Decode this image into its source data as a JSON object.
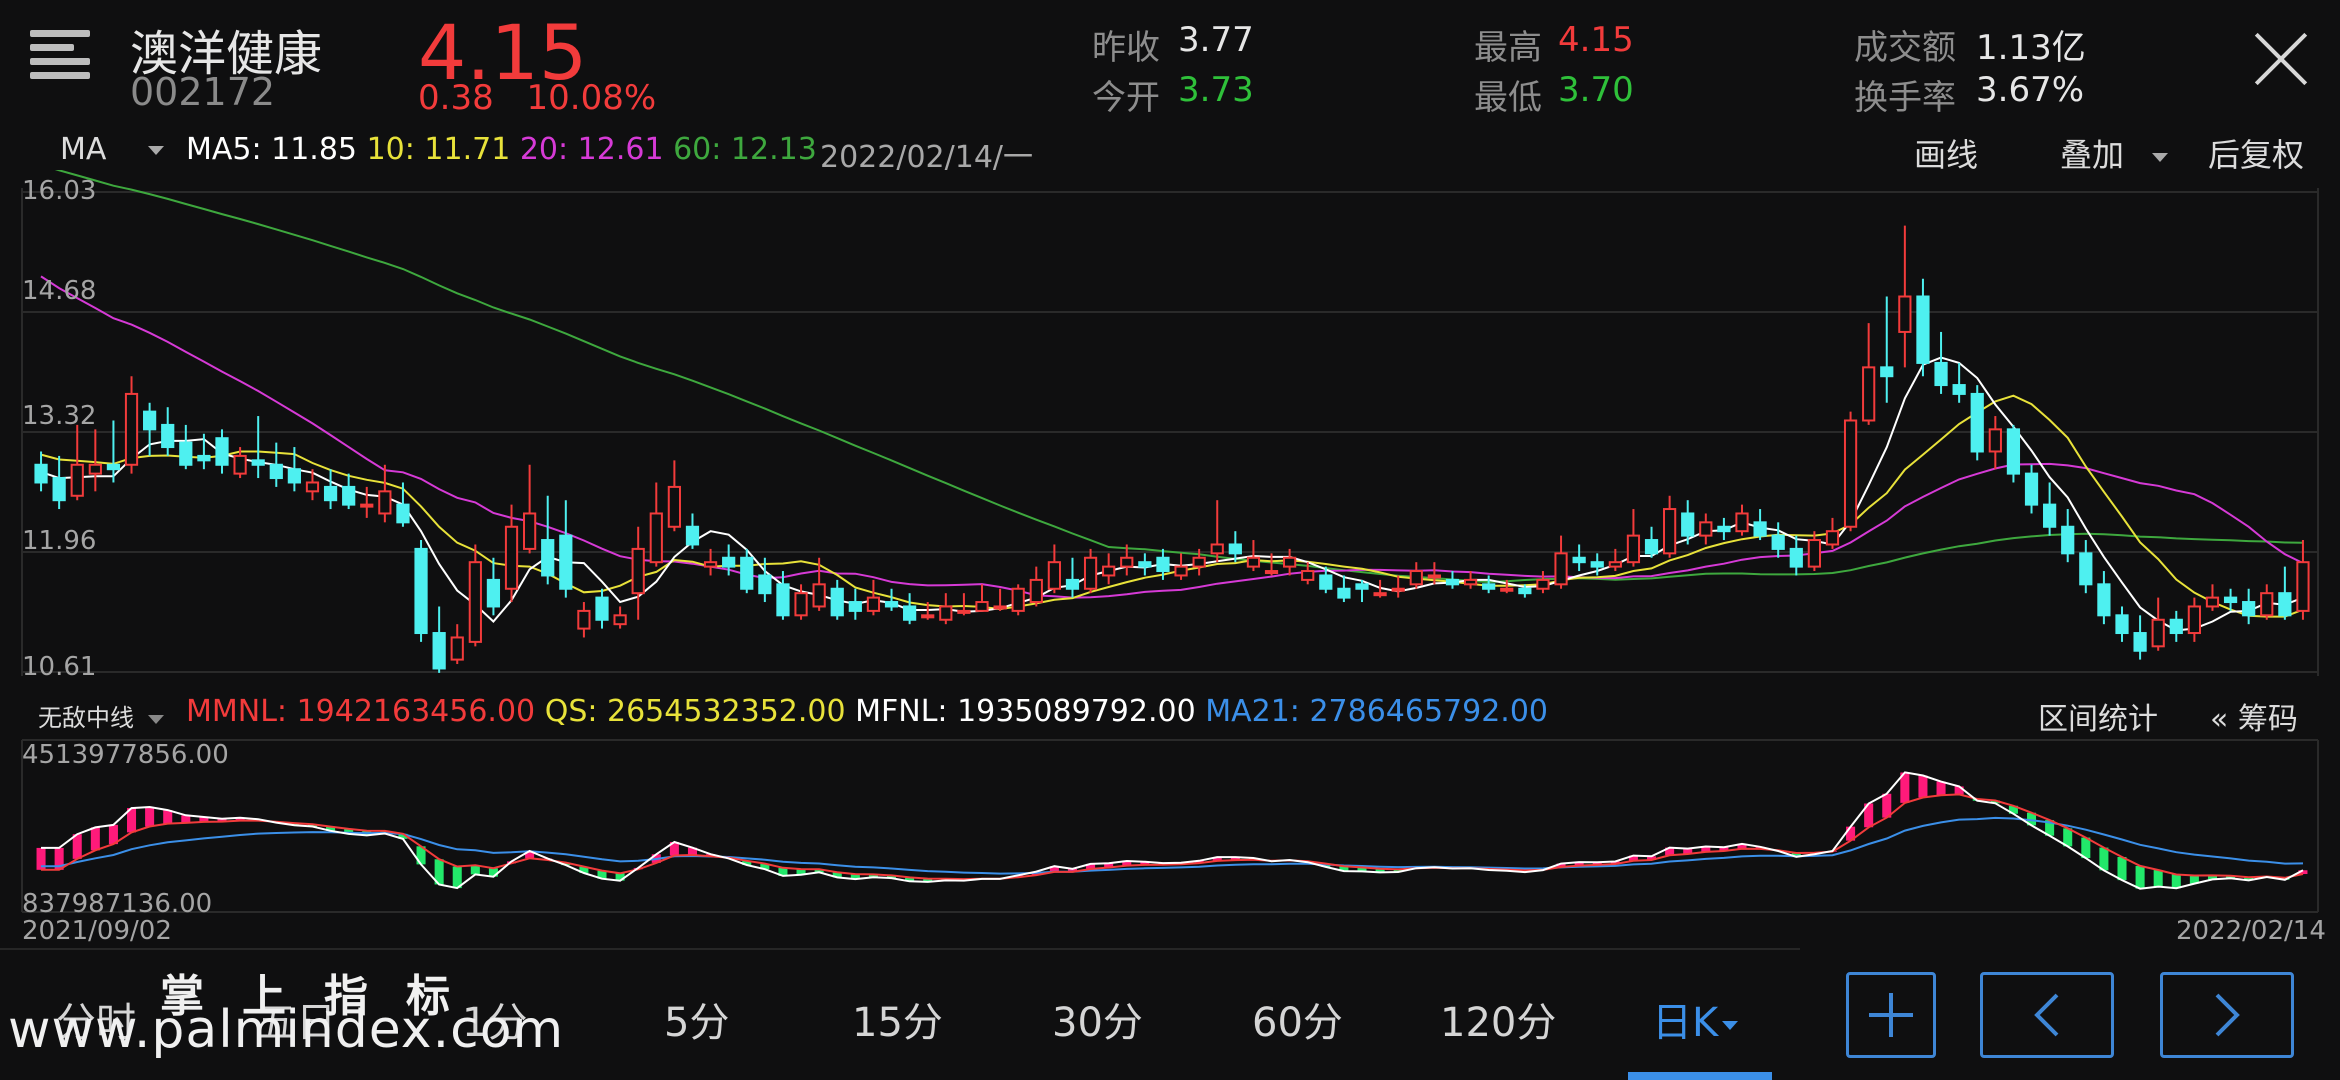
{
  "header": {
    "stock_name": "澳洋健康",
    "stock_code": "002172",
    "price": "4.15",
    "change": "0.38",
    "change_pct": "10.08%",
    "stats": [
      {
        "label": "昨收",
        "value": "3.77",
        "color": "#e6e6e6"
      },
      {
        "label": "今开",
        "value": "3.73",
        "color": "#2fc13a"
      },
      {
        "label": "最高",
        "value": "4.15",
        "color": "#f23b3b"
      },
      {
        "label": "最低",
        "value": "3.70",
        "color": "#2fc13a"
      },
      {
        "label": "成交额",
        "value": "1.13亿",
        "color": "#e6e6e6"
      },
      {
        "label": "换手率",
        "value": "3.67%",
        "color": "#e6e6e6"
      }
    ]
  },
  "indicator_bar": {
    "selector": "MA",
    "ma5": "MA5: 11.85",
    "ma10": "10: 11.71",
    "ma20": "20: 12.61",
    "ma60": "60: 12.13",
    "date": "2022/02/14/一",
    "draw_label": "画线",
    "overlay_label": "叠加",
    "adjust_label": "后复权"
  },
  "sub_bar": {
    "selector": "无敌中线",
    "mmnl": "MMNL: 1942163456.00",
    "qs": "QS: 2654532352.00",
    "mfnl": "MFNL: 1935089792.00",
    "ma21": "MA21: 2786465792.00",
    "range_stats": "区间统计",
    "chips": "« 筹码"
  },
  "colors": {
    "up": "#f23b3b",
    "down": "#4ef0f0",
    "ma5": "#ffffff",
    "ma10": "#e8e23a",
    "ma20": "#d63ad6",
    "ma60": "#3ea83e",
    "ma21": "#3b8fe8",
    "hist_up": "#ff1a7a",
    "hist_down": "#22e86a",
    "active_tab": "#3b8fe8"
  },
  "chart_data": [
    {
      "type": "candlestick",
      "y_ticks": [
        "16.03",
        "14.68",
        "13.32",
        "11.96",
        "10.61"
      ],
      "ylim": [
        10.61,
        16.03
      ],
      "x_range": [
        "2021/09/02",
        "2022/02/14"
      ],
      "series": [
        "MA5",
        "MA10",
        "MA20",
        "MA60"
      ],
      "candles": [
        [
          12.95,
          12.75,
          13.1,
          12.65
        ],
        [
          12.8,
          12.55,
          13.05,
          12.45
        ],
        [
          12.6,
          12.95,
          13.4,
          12.55
        ],
        [
          12.85,
          12.95,
          13.35,
          12.65
        ],
        [
          12.95,
          12.9,
          13.45,
          12.75
        ],
        [
          12.95,
          13.75,
          13.95,
          12.85
        ],
        [
          13.55,
          13.35,
          13.65,
          13.05
        ],
        [
          13.4,
          13.15,
          13.6,
          13.05
        ],
        [
          13.2,
          12.95,
          13.4,
          12.9
        ],
        [
          13.05,
          13.0,
          13.3,
          12.9
        ],
        [
          13.25,
          12.95,
          13.35,
          12.85
        ],
        [
          12.85,
          13.05,
          13.15,
          12.8
        ],
        [
          13.0,
          12.95,
          13.5,
          12.8
        ],
        [
          12.95,
          12.8,
          13.2,
          12.7
        ],
        [
          12.9,
          12.75,
          13.15,
          12.65
        ],
        [
          12.65,
          12.75,
          12.9,
          12.55
        ],
        [
          12.7,
          12.55,
          12.9,
          12.45
        ],
        [
          12.7,
          12.5,
          12.85,
          12.45
        ],
        [
          12.5,
          12.5,
          12.7,
          12.35
        ],
        [
          12.4,
          12.65,
          12.95,
          12.3
        ],
        [
          12.5,
          12.3,
          12.75,
          12.25
        ],
        [
          12.0,
          11.05,
          12.1,
          10.95
        ],
        [
          11.05,
          10.65,
          11.35,
          10.6
        ],
        [
          10.75,
          11.0,
          11.15,
          10.7
        ],
        [
          10.95,
          11.85,
          12.05,
          10.9
        ],
        [
          11.65,
          11.35,
          11.9,
          11.25
        ],
        [
          11.55,
          12.25,
          12.5,
          11.4
        ],
        [
          12.0,
          12.4,
          12.95,
          11.95
        ],
        [
          12.1,
          11.7,
          12.6,
          11.6
        ],
        [
          12.15,
          11.55,
          12.55,
          11.45
        ],
        [
          11.1,
          11.3,
          11.4,
          11.0
        ],
        [
          11.45,
          11.2,
          11.55,
          11.1
        ],
        [
          11.15,
          11.25,
          11.35,
          11.1
        ],
        [
          11.5,
          12.0,
          12.25,
          11.2
        ],
        [
          11.85,
          12.4,
          12.75,
          11.8
        ],
        [
          12.25,
          12.7,
          13.0,
          12.2
        ],
        [
          12.25,
          12.05,
          12.4,
          12.0
        ],
        [
          11.8,
          11.85,
          12.0,
          11.7
        ],
        [
          11.9,
          11.8,
          12.05,
          11.7
        ],
        [
          11.9,
          11.55,
          12.0,
          11.5
        ],
        [
          11.7,
          11.5,
          11.9,
          11.4
        ],
        [
          11.6,
          11.25,
          11.75,
          11.2
        ],
        [
          11.25,
          11.5,
          11.6,
          11.2
        ],
        [
          11.35,
          11.6,
          11.9,
          11.3
        ],
        [
          11.55,
          11.25,
          11.65,
          11.2
        ],
        [
          11.4,
          11.3,
          11.55,
          11.2
        ],
        [
          11.3,
          11.45,
          11.65,
          11.25
        ],
        [
          11.4,
          11.35,
          11.55,
          11.3
        ],
        [
          11.35,
          11.2,
          11.5,
          11.15
        ],
        [
          11.25,
          11.25,
          11.4,
          11.2
        ],
        [
          11.2,
          11.35,
          11.5,
          11.15
        ],
        [
          11.3,
          11.3,
          11.5,
          11.25
        ],
        [
          11.3,
          11.4,
          11.6,
          11.3
        ],
        [
          11.35,
          11.35,
          11.55,
          11.3
        ],
        [
          11.3,
          11.55,
          11.6,
          11.25
        ],
        [
          11.4,
          11.65,
          11.8,
          11.35
        ],
        [
          11.55,
          11.85,
          12.05,
          11.5
        ],
        [
          11.65,
          11.55,
          11.9,
          11.45
        ],
        [
          11.55,
          11.9,
          12.0,
          11.5
        ],
        [
          11.7,
          11.8,
          11.95,
          11.6
        ],
        [
          11.8,
          11.9,
          12.05,
          11.7
        ],
        [
          11.85,
          11.8,
          11.95,
          11.7
        ],
        [
          11.9,
          11.75,
          12.0,
          11.65
        ],
        [
          11.7,
          11.8,
          11.95,
          11.65
        ],
        [
          11.8,
          11.9,
          12.0,
          11.7
        ],
        [
          11.95,
          12.05,
          12.55,
          11.85
        ],
        [
          12.05,
          11.95,
          12.2,
          11.85
        ],
        [
          11.8,
          11.9,
          12.1,
          11.75
        ],
        [
          11.75,
          11.75,
          11.95,
          11.7
        ],
        [
          11.8,
          11.9,
          12.0,
          11.7
        ],
        [
          11.65,
          11.75,
          11.85,
          11.6
        ],
        [
          11.7,
          11.55,
          11.8,
          11.5
        ],
        [
          11.55,
          11.45,
          11.7,
          11.4
        ],
        [
          11.6,
          11.55,
          11.65,
          11.4
        ],
        [
          11.5,
          11.5,
          11.65,
          11.45
        ],
        [
          11.55,
          11.55,
          11.7,
          11.45
        ],
        [
          11.6,
          11.75,
          11.85,
          11.55
        ],
        [
          11.7,
          11.7,
          11.85,
          11.6
        ],
        [
          11.65,
          11.6,
          11.75,
          11.55
        ],
        [
          11.6,
          11.65,
          11.75,
          11.55
        ],
        [
          11.6,
          11.55,
          11.7,
          11.5
        ],
        [
          11.55,
          11.55,
          11.65,
          11.5
        ],
        [
          11.55,
          11.5,
          11.6,
          11.45
        ],
        [
          11.55,
          11.65,
          11.75,
          11.5
        ],
        [
          11.6,
          11.95,
          12.15,
          11.55
        ],
        [
          11.9,
          11.85,
          12.05,
          11.75
        ],
        [
          11.85,
          11.8,
          11.95,
          11.7
        ],
        [
          11.8,
          11.85,
          12.0,
          11.75
        ],
        [
          11.85,
          12.15,
          12.45,
          11.8
        ],
        [
          12.1,
          11.95,
          12.25,
          11.9
        ],
        [
          11.95,
          12.45,
          12.6,
          11.9
        ],
        [
          12.4,
          12.15,
          12.55,
          12.05
        ],
        [
          12.15,
          12.3,
          12.4,
          12.05
        ],
        [
          12.25,
          12.2,
          12.35,
          12.1
        ],
        [
          12.2,
          12.4,
          12.5,
          12.15
        ],
        [
          12.3,
          12.15,
          12.45,
          12.1
        ],
        [
          12.15,
          12.0,
          12.3,
          11.9
        ],
        [
          12.0,
          11.8,
          12.15,
          11.7
        ],
        [
          11.8,
          12.1,
          12.2,
          11.75
        ],
        [
          12.05,
          12.2,
          12.35,
          12.0
        ],
        [
          12.25,
          13.45,
          13.55,
          12.2
        ],
        [
          13.45,
          14.05,
          14.55,
          13.4
        ],
        [
          14.05,
          13.95,
          14.85,
          13.65
        ],
        [
          14.45,
          14.85,
          15.65,
          14.05
        ],
        [
          14.85,
          14.1,
          15.05,
          13.95
        ],
        [
          14.1,
          13.85,
          14.45,
          13.75
        ],
        [
          13.85,
          13.75,
          14.1,
          13.65
        ],
        [
          13.75,
          13.1,
          13.85,
          13.0
        ],
        [
          13.1,
          13.35,
          13.5,
          12.9
        ],
        [
          13.35,
          12.85,
          13.4,
          12.75
        ],
        [
          12.85,
          12.5,
          12.95,
          12.4
        ],
        [
          12.5,
          12.25,
          12.75,
          12.15
        ],
        [
          12.25,
          11.95,
          12.45,
          11.85
        ],
        [
          11.95,
          11.6,
          12.1,
          11.5
        ],
        [
          11.6,
          11.25,
          11.75,
          11.15
        ],
        [
          11.25,
          11.05,
          11.35,
          10.95
        ],
        [
          11.05,
          10.85,
          11.25,
          10.75
        ],
        [
          10.9,
          11.2,
          11.45,
          10.85
        ],
        [
          11.2,
          11.05,
          11.3,
          10.95
        ],
        [
          11.05,
          11.35,
          11.45,
          10.95
        ],
        [
          11.35,
          11.45,
          11.6,
          11.3
        ],
        [
          11.45,
          11.4,
          11.55,
          11.3
        ],
        [
          11.4,
          11.25,
          11.55,
          11.15
        ],
        [
          11.25,
          11.5,
          11.6,
          11.2
        ],
        [
          11.5,
          11.25,
          11.8,
          11.2
        ],
        [
          11.3,
          11.85,
          12.1,
          11.2
        ]
      ]
    },
    {
      "type": "bar",
      "indicator": "无敌中线",
      "y_ticks": [
        "4513977856.00",
        "837987136.00"
      ],
      "series": [
        "MMNL",
        "QS",
        "MFNL",
        "MA21"
      ]
    }
  ],
  "bottom": {
    "tabs": [
      "分时",
      "五日",
      "1分",
      "5分",
      "15分",
      "30分",
      "60分",
      "120分",
      "日K"
    ],
    "active_tab": "日K",
    "watermark_cn": "掌上指标",
    "watermark_url": "www.palmindex.com"
  }
}
